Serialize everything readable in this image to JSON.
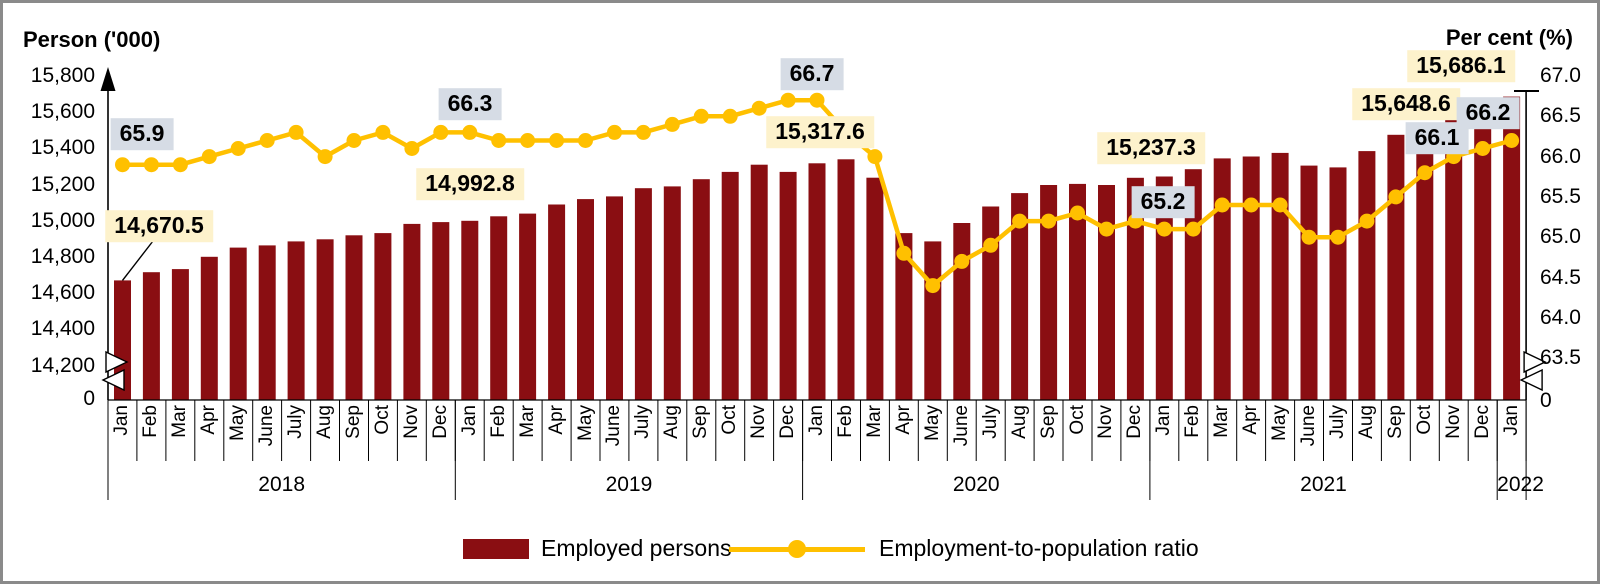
{
  "chart_data": {
    "type": "combo",
    "title": "",
    "month_pattern": [
      "Jan",
      "Feb",
      "Mar",
      "Apr",
      "May",
      "June",
      "July",
      "Aug",
      "Sep",
      "Oct",
      "Nov",
      "Dec"
    ],
    "years": [
      {
        "label": "2018",
        "months": 12
      },
      {
        "label": "2019",
        "months": 12
      },
      {
        "label": "2020",
        "months": 12
      },
      {
        "label": "2021",
        "months": 12
      },
      {
        "label": "2022",
        "months": 1
      }
    ],
    "left_axis": {
      "title": "Person ('000)",
      "tick_labels": [
        "15,800",
        "15,600",
        "15,400",
        "15,200",
        "15,000",
        "14,800",
        "14,600",
        "14,400",
        "14,200",
        "0"
      ],
      "broken_axis": true
    },
    "right_axis": {
      "title": "Per cent (%)",
      "tick_labels": [
        "67.0",
        "66.5",
        "66.0",
        "65.5",
        "65.0",
        "64.5",
        "64.0",
        "63.5",
        "0"
      ],
      "broken_axis": true
    },
    "series": [
      {
        "name": "Employed persons",
        "chart": "bar",
        "axis": "left",
        "color": "#8A0E12",
        "values": [
          14670.5,
          14716,
          14733,
          14801,
          14852,
          14864,
          14886,
          14898,
          14920,
          14932,
          14983,
          14992.8,
          15000,
          15025,
          15040,
          15090,
          15120,
          15135,
          15180,
          15190,
          15230,
          15270,
          15310,
          15270,
          15317.6,
          15340,
          15238,
          14932,
          14886,
          14988,
          15079,
          15153,
          15198,
          15204,
          15198,
          15237.3,
          15245,
          15285,
          15345,
          15355,
          15375,
          15305,
          15295,
          15385,
          15475,
          15540,
          15590,
          15648.6,
          15686.1
        ]
      },
      {
        "name": "Employment-to-population ratio",
        "chart": "line",
        "axis": "right",
        "color": "#FFC000",
        "values": [
          65.9,
          65.9,
          65.9,
          66.0,
          66.1,
          66.2,
          66.3,
          66.0,
          66.2,
          66.3,
          66.1,
          66.3,
          66.3,
          66.2,
          66.2,
          66.2,
          66.2,
          66.3,
          66.3,
          66.4,
          66.5,
          66.5,
          66.6,
          66.7,
          66.7,
          66.3,
          66.0,
          64.8,
          64.4,
          64.7,
          64.9,
          65.2,
          65.2,
          65.3,
          65.1,
          65.2,
          65.1,
          65.1,
          65.4,
          65.4,
          65.4,
          65.0,
          65.0,
          65.2,
          65.5,
          65.8,
          66.0,
          66.1,
          66.2
        ]
      }
    ],
    "callouts": [
      {
        "text": "65.9",
        "series": "ratio",
        "month": "Jan",
        "year": "2018",
        "month_index": 0
      },
      {
        "text": "14,670.5",
        "series": "bar",
        "month": "Jan",
        "year": "2018",
        "month_index": 0
      },
      {
        "text": "66.3",
        "series": "ratio",
        "month": "Dec",
        "year": "2018",
        "month_index": 11
      },
      {
        "text": "14,992.8",
        "series": "bar",
        "month": "Dec",
        "year": "2018",
        "month_index": 11
      },
      {
        "text": "66.7",
        "series": "ratio",
        "month": "Jan",
        "year": "2020",
        "month_index": 24
      },
      {
        "text": "15,317.6",
        "series": "bar",
        "month": "Jan",
        "year": "2020",
        "month_index": 24
      },
      {
        "text": "15,237.3",
        "series": "bar",
        "month": "Dec",
        "year": "2020",
        "month_index": 35
      },
      {
        "text": "65.2",
        "series": "ratio",
        "month": "Dec",
        "year": "2020",
        "month_index": 35
      },
      {
        "text": "15,648.6",
        "series": "bar",
        "month": "Dec",
        "year": "2021",
        "month_index": 47
      },
      {
        "text": "66.1",
        "series": "ratio",
        "month": "Dec",
        "year": "2021",
        "month_index": 47
      },
      {
        "text": "15,686.1",
        "series": "bar",
        "month": "Jan",
        "year": "2022",
        "month_index": 48
      },
      {
        "text": "66.2",
        "series": "ratio",
        "month": "Jan",
        "year": "2022",
        "month_index": 48
      }
    ],
    "colors": {
      "bar": "#8A0E12",
      "line": "#FFC000",
      "callout_bar_bg": "#FDF2CC",
      "callout_ratio_bg": "#D6DCE5",
      "axis": "#000000"
    }
  }
}
